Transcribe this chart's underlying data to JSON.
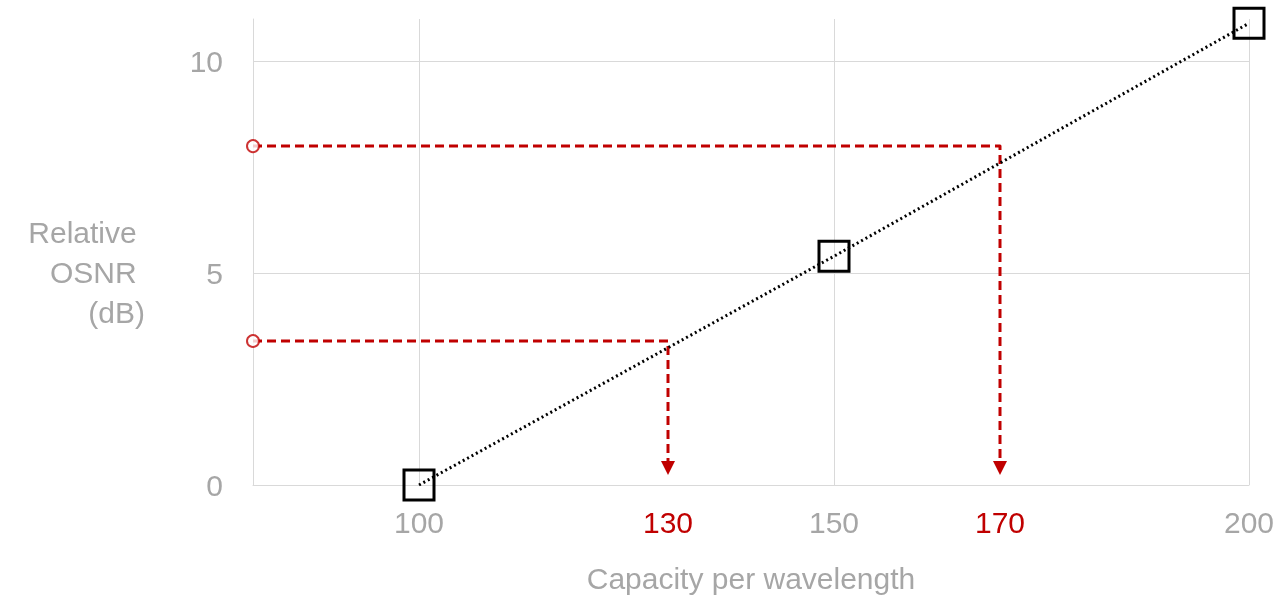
{
  "chart_data": {
    "type": "line",
    "xlabel": "Capacity per wavelength",
    "ylabel": "Relative OSNR (dB)",
    "xlim": [
      80,
      200
    ],
    "xticks": [
      100,
      150,
      200
    ],
    "ylim": [
      0,
      11
    ],
    "yticks": [
      0,
      5,
      10
    ],
    "grid": true,
    "series": [
      {
        "color": "#000000",
        "x": [
          100,
          150,
          200
        ],
        "values": [
          0,
          5.4,
          10.9
        ],
        "marker": "square",
        "line_style": "dotted"
      },
      {
        "color": "#c00000",
        "x": [
          80,
          170,
          170
        ],
        "values": [
          8,
          8,
          0.4
        ],
        "marker": "none",
        "line_style": "dashed"
      },
      {
        "color": "#c00000",
        "x": [
          80,
          130,
          130
        ],
        "values": [
          3.4,
          3.4,
          0.4
        ],
        "marker": "none",
        "line_style": "dashed"
      },
      {
        "type": "scatter",
        "color": "#c00000",
        "x": [
          80,
          80
        ],
        "values": [
          8,
          3.4
        ],
        "marker": "circle"
      }
    ],
    "annotations": [
      {
        "text": "130",
        "x": 130,
        "y": 0.4
      },
      {
        "text": "170",
        "x": 170,
        "y": 0.4
      }
    ]
  }
}
